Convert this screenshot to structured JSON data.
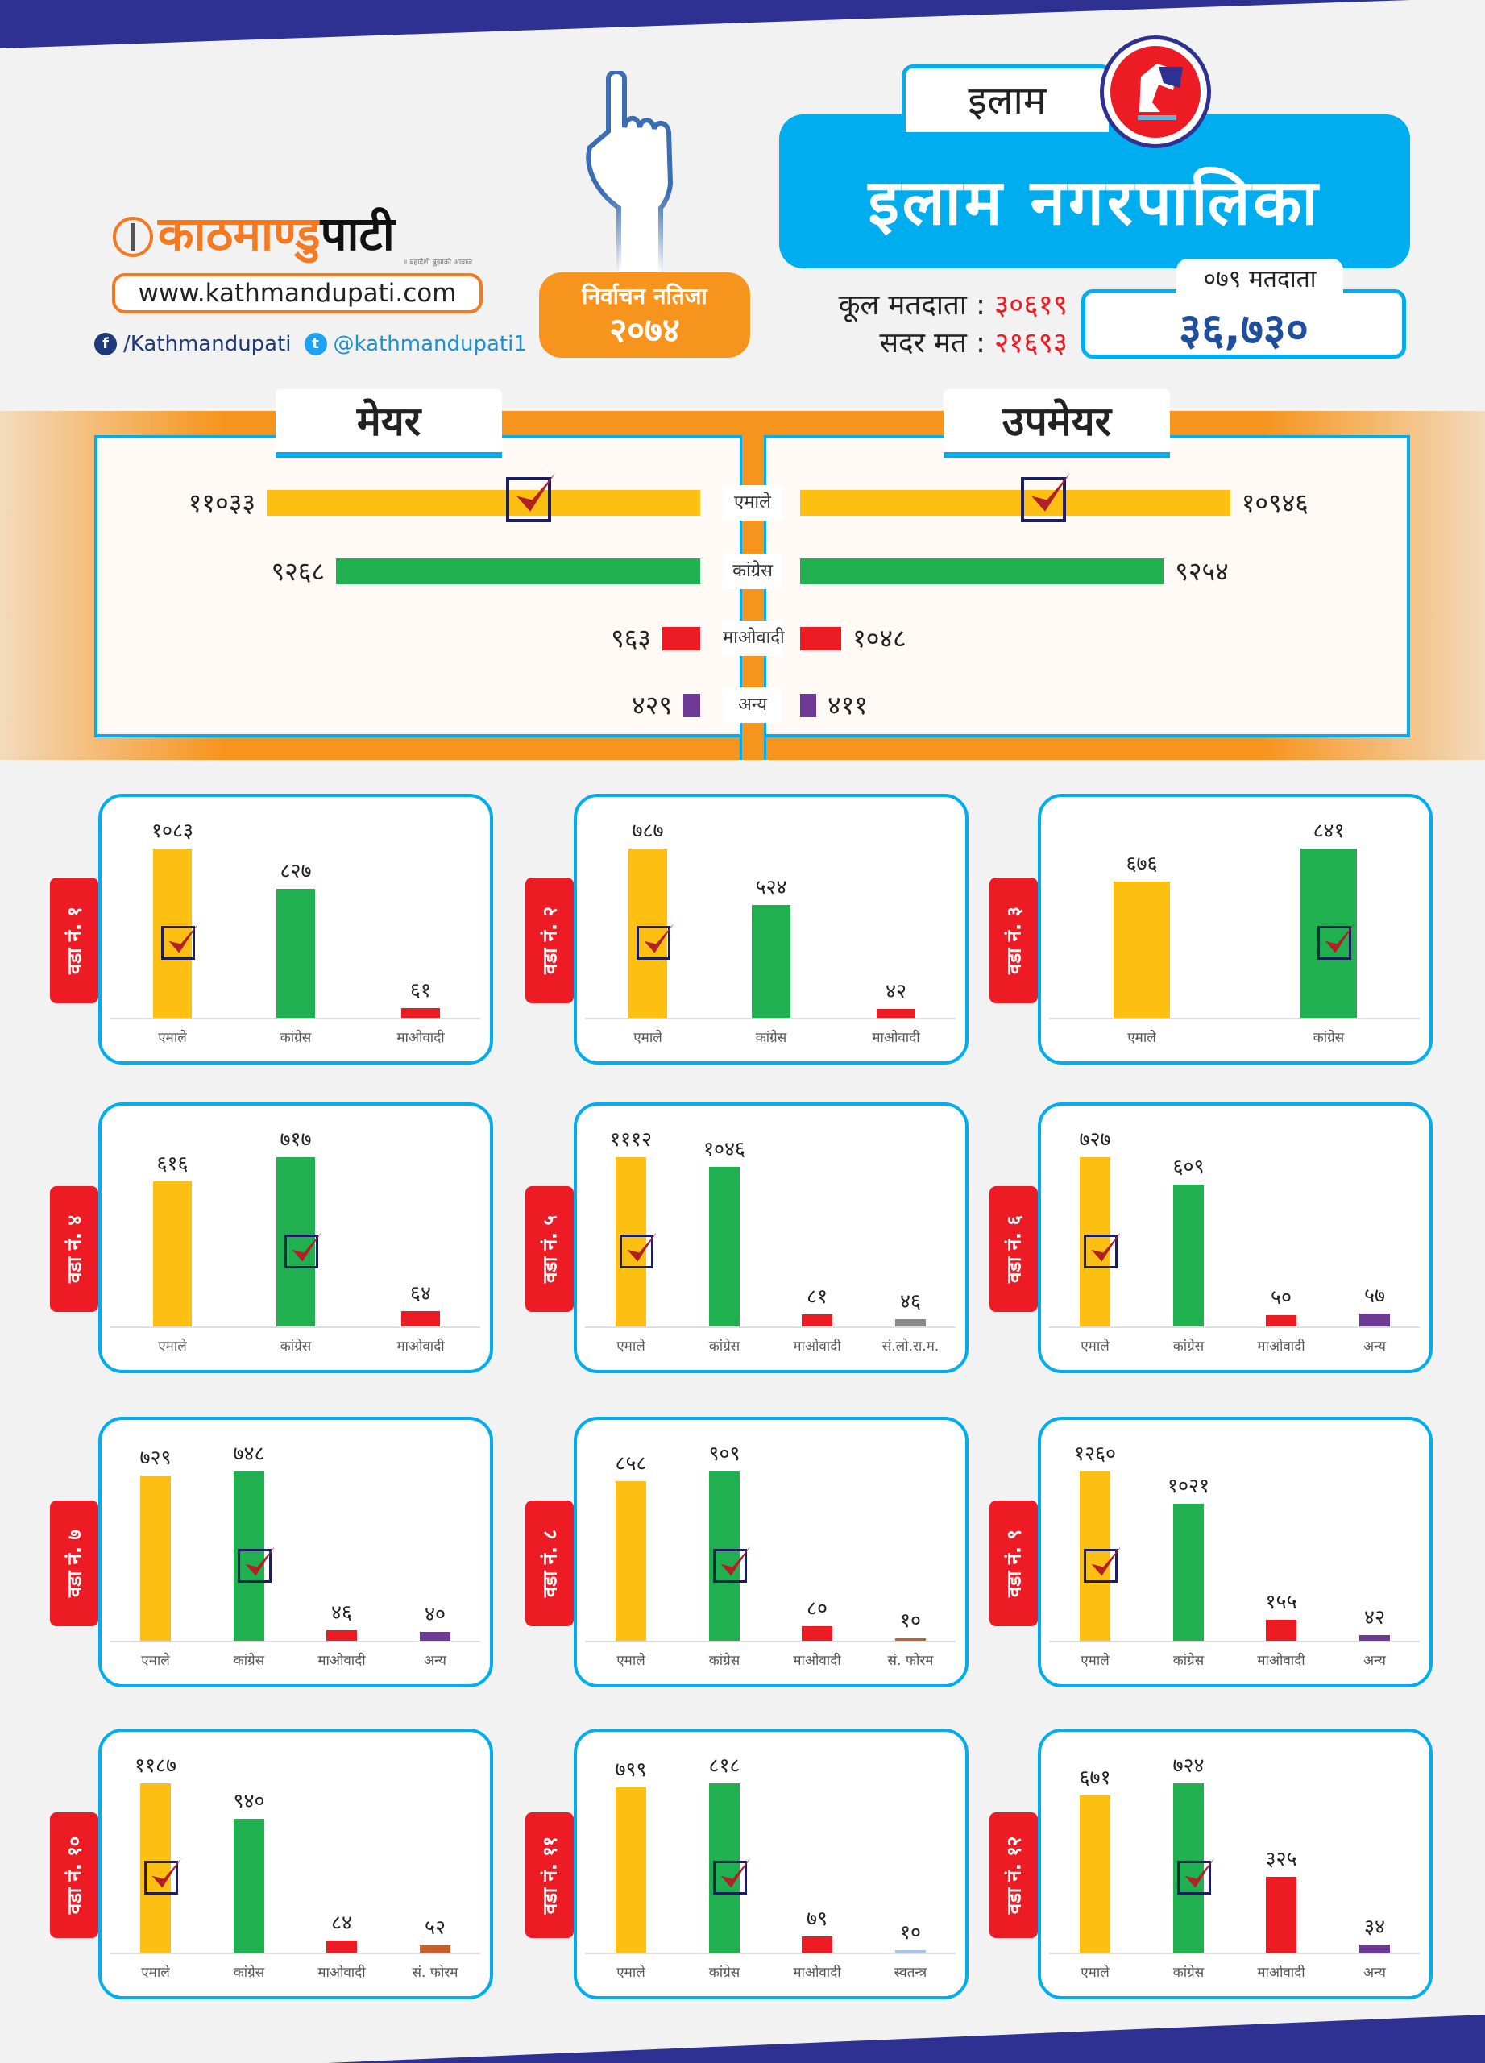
{
  "brand": {
    "logo_orange": "काठमाण्डु",
    "logo_black": "पाटी",
    "tagline": "॥ बहादेशी बुझाको आवाज",
    "website": "www.kathmandupati.com",
    "facebook": "/Kathmandupati",
    "twitter": "@kathmandupati1"
  },
  "header": {
    "result_title": "निर्वाचन नतिजा",
    "result_year": "२०७४",
    "district": "इलाम",
    "municipality": "इलाम  नगरपालिका",
    "total_voters_label": "कूल मतदाता",
    "total_voters": "३०६१९",
    "valid_votes_label": "सदर मत",
    "valid_votes": "२१६९३",
    "voters_079_label": "०७९ मतदाता",
    "voters_079": "३६,७३०"
  },
  "colors": {
    "एमाले": "#fcbf12",
    "कांग्रेस": "#21b04f",
    "माओवादी": "#ed1c24",
    "अन्य": "#6f3996",
    "सं.लो.रा.म.": "#8a8a8a",
    "सं. फोरम": "#c8602a",
    "स्वतन्त्र": "#a9c4ea"
  },
  "chart_data": [
    {
      "type": "bar",
      "id": "mayor",
      "title": "मेयर",
      "categories": [
        "एमाले",
        "कांग्रेस",
        "माओवादी",
        "अन्य"
      ],
      "values": [
        11033,
        9268,
        963,
        429
      ],
      "winner": "एमाले"
    },
    {
      "type": "bar",
      "id": "deputy",
      "title": "उपमेयर",
      "categories": [
        "एमाले",
        "कांग्रेस",
        "माओवादी",
        "अन्य"
      ],
      "values": [
        10946,
        9254,
        1048,
        411
      ],
      "winner": "एमाले"
    },
    {
      "type": "bar",
      "title": "वडा नं. १",
      "categories": [
        "एमाले",
        "कांग्रेस",
        "माओवादी"
      ],
      "values": [
        1083,
        827,
        61
      ],
      "winner": "एमाले"
    },
    {
      "type": "bar",
      "title": "वडा नं. २",
      "categories": [
        "एमाले",
        "कांग्रेस",
        "माओवादी"
      ],
      "values": [
        787,
        524,
        42
      ],
      "winner": "एमाले"
    },
    {
      "type": "bar",
      "title": "वडा नं. ३",
      "categories": [
        "एमाले",
        "कांग्रेस"
      ],
      "values": [
        676,
        841
      ],
      "winner": "कांग्रेस"
    },
    {
      "type": "bar",
      "title": "वडा नं. ४",
      "categories": [
        "एमाले",
        "कांग्रेस",
        "माओवादी"
      ],
      "values": [
        616,
        717,
        64
      ],
      "winner": "कांग्रेस"
    },
    {
      "type": "bar",
      "title": "वडा नं. ५",
      "categories": [
        "एमाले",
        "कांग्रेस",
        "माओवादी",
        "सं.लो.रा.म."
      ],
      "values": [
        1112,
        1046,
        81,
        46
      ],
      "winner": "एमाले"
    },
    {
      "type": "bar",
      "title": "वडा नं. ६",
      "categories": [
        "एमाले",
        "कांग्रेस",
        "माओवादी",
        "अन्य"
      ],
      "values": [
        727,
        609,
        50,
        57
      ],
      "winner": "एमाले"
    },
    {
      "type": "bar",
      "title": "वडा नं. ७",
      "categories": [
        "एमाले",
        "कांग्रेस",
        "माओवादी",
        "अन्य"
      ],
      "values": [
        729,
        748,
        46,
        40
      ],
      "winner": "कांग्रेस"
    },
    {
      "type": "bar",
      "title": "वडा नं. ८",
      "categories": [
        "एमाले",
        "कांग्रेस",
        "माओवादी",
        "सं. फोरम"
      ],
      "values": [
        858,
        909,
        80,
        10
      ],
      "winner": "कांग्रेस"
    },
    {
      "type": "bar",
      "title": "वडा नं. ९",
      "categories": [
        "एमाले",
        "कांग्रेस",
        "माओवादी",
        "अन्य"
      ],
      "values": [
        1260,
        1021,
        155,
        42
      ],
      "winner": "एमाले"
    },
    {
      "type": "bar",
      "title": "वडा नं. १०",
      "categories": [
        "एमाले",
        "कांग्रेस",
        "माओवादी",
        "सं. फोरम"
      ],
      "values": [
        1187,
        940,
        84,
        52
      ],
      "winner": "एमाले"
    },
    {
      "type": "bar",
      "title": "वडा नं. ११",
      "categories": [
        "एमाले",
        "कांग्रेस",
        "माओवादी",
        "स्वतन्त्र"
      ],
      "values": [
        799,
        818,
        79,
        10
      ],
      "winner": "कांग्रेस"
    },
    {
      "type": "bar",
      "title": "वडा नं. १२",
      "categories": [
        "एमाले",
        "कांग्रेस",
        "माओवादी",
        "अन्य"
      ],
      "values": [
        671,
        724,
        325,
        34
      ],
      "winner": "कांग्रेस"
    }
  ]
}
